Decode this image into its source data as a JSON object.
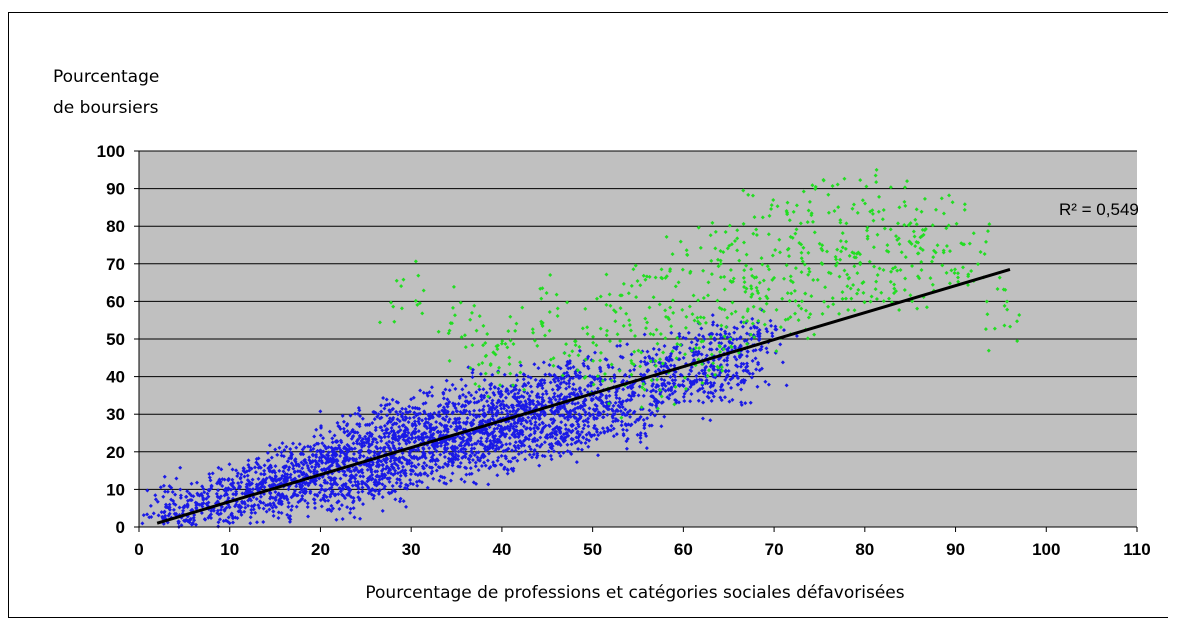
{
  "chart_data": {
    "type": "scatter",
    "title": "",
    "ylabel_lines": [
      "Pourcentage",
      "de boursiers"
    ],
    "xlabel": "Pourcentage de professions et catégories sociales défavorisées",
    "xlim": [
      0,
      110
    ],
    "ylim": [
      0,
      100
    ],
    "xticks": [
      0,
      10,
      20,
      30,
      40,
      50,
      60,
      70,
      80,
      90,
      100,
      110
    ],
    "yticks": [
      0,
      10,
      20,
      30,
      40,
      50,
      60,
      70,
      80,
      90,
      100
    ],
    "grid": "horizontal",
    "plot_background": "#c0c0c0",
    "trendline": {
      "type": "linear",
      "x": [
        2,
        96
      ],
      "y": [
        1,
        68.5
      ],
      "color": "#000000",
      "r2_label": "R² = 0,549"
    },
    "series": [
      {
        "color": "#1a1ae6",
        "marker": "diamond",
        "description_points": [
          [
            3,
            2
          ],
          [
            5,
            6
          ],
          [
            8,
            5
          ],
          [
            10,
            9
          ],
          [
            12,
            7
          ],
          [
            13,
            12
          ],
          [
            15,
            10
          ],
          [
            16,
            14
          ],
          [
            18,
            11
          ],
          [
            19,
            17
          ],
          [
            20,
            13
          ],
          [
            21,
            20
          ],
          [
            22,
            9
          ],
          [
            23,
            16
          ],
          [
            24,
            22
          ],
          [
            25,
            12
          ],
          [
            26,
            25
          ],
          [
            27,
            18
          ],
          [
            28,
            14
          ],
          [
            29,
            28
          ],
          [
            30,
            20
          ],
          [
            31,
            24
          ],
          [
            32,
            17
          ],
          [
            33,
            30
          ],
          [
            34,
            22
          ],
          [
            35,
            26
          ],
          [
            36,
            19
          ],
          [
            37,
            33
          ],
          [
            38,
            24
          ],
          [
            39,
            28
          ],
          [
            40,
            21
          ],
          [
            41,
            35
          ],
          [
            42,
            27
          ],
          [
            43,
            30
          ],
          [
            44,
            23
          ],
          [
            45,
            38
          ],
          [
            46,
            29
          ],
          [
            47,
            32
          ],
          [
            48,
            25
          ],
          [
            49,
            40
          ],
          [
            50,
            30
          ],
          [
            52,
            35
          ],
          [
            54,
            28
          ],
          [
            56,
            42
          ],
          [
            58,
            36
          ],
          [
            60,
            45
          ],
          [
            62,
            38
          ],
          [
            64,
            48
          ],
          [
            66,
            41
          ],
          [
            68,
            50
          ]
        ]
      },
      {
        "color": "#22dd22",
        "marker": "diamond",
        "description_points": [
          [
            30,
            63
          ],
          [
            35,
            55
          ],
          [
            38,
            48
          ],
          [
            40,
            42
          ],
          [
            42,
            50
          ],
          [
            45,
            58
          ],
          [
            48,
            45
          ],
          [
            50,
            52
          ],
          [
            52,
            40
          ],
          [
            53,
            60
          ],
          [
            55,
            48
          ],
          [
            56,
            65
          ],
          [
            57,
            38
          ],
          [
            58,
            55
          ],
          [
            60,
            70
          ],
          [
            61,
            45
          ],
          [
            62,
            60
          ],
          [
            63,
            52
          ],
          [
            64,
            75
          ],
          [
            65,
            48
          ],
          [
            66,
            68
          ],
          [
            67,
            58
          ],
          [
            68,
            80
          ],
          [
            69,
            62
          ],
          [
            70,
            72
          ],
          [
            71,
            55
          ],
          [
            72,
            85
          ],
          [
            73,
            66
          ],
          [
            74,
            76
          ],
          [
            75,
            60
          ],
          [
            76,
            88
          ],
          [
            77,
            70
          ],
          [
            78,
            64
          ],
          [
            79,
            82
          ],
          [
            80,
            68
          ],
          [
            81,
            90
          ],
          [
            82,
            74
          ],
          [
            83,
            62
          ],
          [
            84,
            78
          ],
          [
            85,
            70
          ],
          [
            86,
            83
          ],
          [
            88,
            72
          ],
          [
            90,
            68
          ],
          [
            92,
            80
          ],
          [
            96,
            54
          ]
        ]
      }
    ]
  }
}
